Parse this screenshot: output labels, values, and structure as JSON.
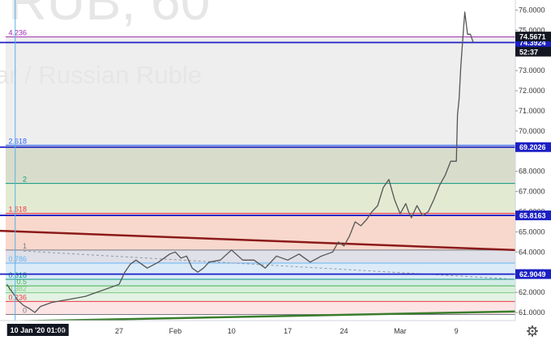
{
  "watermark": {
    "symbol": "RUB, 60",
    "name": "ar / Russian Ruble"
  },
  "chart_data": {
    "type": "line",
    "y_axis_side": "right",
    "ylim": [
      60.6,
      76.5
    ],
    "xlim": [
      -0.12,
      9.05
    ],
    "y_ticks": [
      "61.0000",
      "62.0000",
      "63.0000",
      "64.0000",
      "65.0000",
      "66.0000",
      "67.0000",
      "68.0000",
      "70.0000",
      "71.0000",
      "72.0000",
      "73.0000",
      "75.0000",
      "76.0000"
    ],
    "x_ticks": [
      {
        "label": "10 Jan '20  01:00",
        "x": 0.15,
        "highlight": true
      },
      {
        "label": "20",
        "x": 1.0
      },
      {
        "label": "27",
        "x": 2.0
      },
      {
        "label": "Feb",
        "x": 3.0
      },
      {
        "label": "10",
        "x": 4.0
      },
      {
        "label": "17",
        "x": 5.0
      },
      {
        "label": "24",
        "x": 6.0
      },
      {
        "label": "Mar",
        "x": 7.0
      },
      {
        "label": "9",
        "x": 8.0
      }
    ],
    "fib_levels": [
      {
        "label": "0",
        "value": 60.9,
        "color": "#787b86"
      },
      {
        "label": "0.236",
        "value": 61.55,
        "color": "#f23645"
      },
      {
        "label": "0.382",
        "value": 61.98,
        "color": "#81c784"
      },
      {
        "label": "0.5",
        "value": 62.32,
        "color": "#4caf50"
      },
      {
        "label": "0.618",
        "value": 62.65,
        "color": "#089981"
      },
      {
        "label": "0.786",
        "value": 63.45,
        "color": "#64b5f6"
      },
      {
        "label": "1",
        "value": 64.1,
        "color": "#787b86"
      },
      {
        "label": "1.618",
        "value": 65.92,
        "color": "#f23645"
      },
      {
        "label": "2",
        "value": 67.4,
        "color": "#089981"
      },
      {
        "label": "2.618",
        "value": 69.3,
        "color": "#2962ff"
      },
      {
        "label": "4.236",
        "value": 74.67,
        "color": "#9c27b0"
      }
    ],
    "fib_fills": [
      "#fce4e4",
      "#e2f3e4",
      "#d8f0db",
      "#d3ece7",
      "#dcebf8",
      "#dfe0e8",
      "#f8d8cc",
      "#e3ead2",
      "#d8dccb"
    ],
    "horizontal_lines": [
      {
        "value": 74.3924,
        "label": "74.3924"
      },
      {
        "value": 69.2026,
        "label": "69.2026"
      },
      {
        "value": 65.8163,
        "label": "65.8163"
      },
      {
        "value": 62.9049,
        "label": "62.9049"
      }
    ],
    "price_badges": [
      {
        "value": 74.5671,
        "label": "74.5671",
        "bg": "#131722",
        "fg": "#ffffff"
      },
      {
        "value": 74.1,
        "label": "52:37",
        "bg": "#131722",
        "fg": "#ffffff"
      }
    ],
    "trendlines": [
      {
        "from": [
          -0.12,
          65.05
        ],
        "to": [
          9.05,
          64.1
        ],
        "color": "#8b1a1a",
        "width": 2.5
      },
      {
        "from": [
          -0.12,
          60.55
        ],
        "to": [
          9.05,
          61.05
        ],
        "color": "#3a7d2c",
        "width": 2.5
      },
      {
        "from": [
          0.3,
          64.05
        ],
        "to": [
          9.05,
          62.65
        ],
        "color": "#9098a5",
        "width": 1,
        "dash": "3,3"
      }
    ],
    "vertical_cursor_x": 0.15,
    "series": [
      {
        "color": "#555555",
        "x": [
          0.0,
          0.1,
          0.2,
          0.3,
          0.4,
          0.5,
          0.6,
          0.8,
          1.0,
          1.2,
          1.4,
          1.6,
          1.8,
          2.0,
          2.1,
          2.2,
          2.3,
          2.5,
          2.7,
          2.9,
          3.0,
          3.1,
          3.2,
          3.3,
          3.4,
          3.5,
          3.6,
          3.8,
          4.0,
          4.2,
          4.4,
          4.6,
          4.8,
          5.0,
          5.2,
          5.4,
          5.6,
          5.8,
          5.9,
          6.0,
          6.1,
          6.2,
          6.3,
          6.4,
          6.5,
          6.6,
          6.7,
          6.8,
          6.9,
          7.0,
          7.1,
          7.15,
          7.2,
          7.3,
          7.4,
          7.5,
          7.6,
          7.7,
          7.8,
          7.9,
          8.0,
          8.02,
          8.05,
          8.08,
          8.1,
          8.15,
          8.2,
          8.25,
          8.3
        ],
        "values": [
          62.4,
          62.0,
          61.6,
          61.35,
          61.2,
          61.0,
          61.3,
          61.5,
          61.6,
          61.7,
          61.8,
          62.0,
          62.2,
          62.4,
          63.0,
          63.4,
          63.6,
          63.2,
          63.5,
          63.9,
          64.0,
          63.7,
          63.8,
          63.2,
          63.0,
          63.2,
          63.5,
          63.6,
          64.1,
          63.6,
          63.6,
          63.2,
          63.8,
          63.6,
          63.9,
          63.5,
          63.8,
          64.0,
          64.5,
          64.3,
          64.8,
          65.5,
          65.3,
          65.6,
          66.0,
          66.3,
          67.2,
          67.6,
          66.6,
          65.9,
          66.4,
          66.0,
          65.7,
          66.3,
          65.8,
          66.0,
          66.6,
          67.3,
          67.8,
          68.5,
          68.5,
          70.8,
          71.6,
          73.2,
          74.0,
          75.9,
          74.8,
          74.8,
          74.4
        ]
      }
    ]
  }
}
